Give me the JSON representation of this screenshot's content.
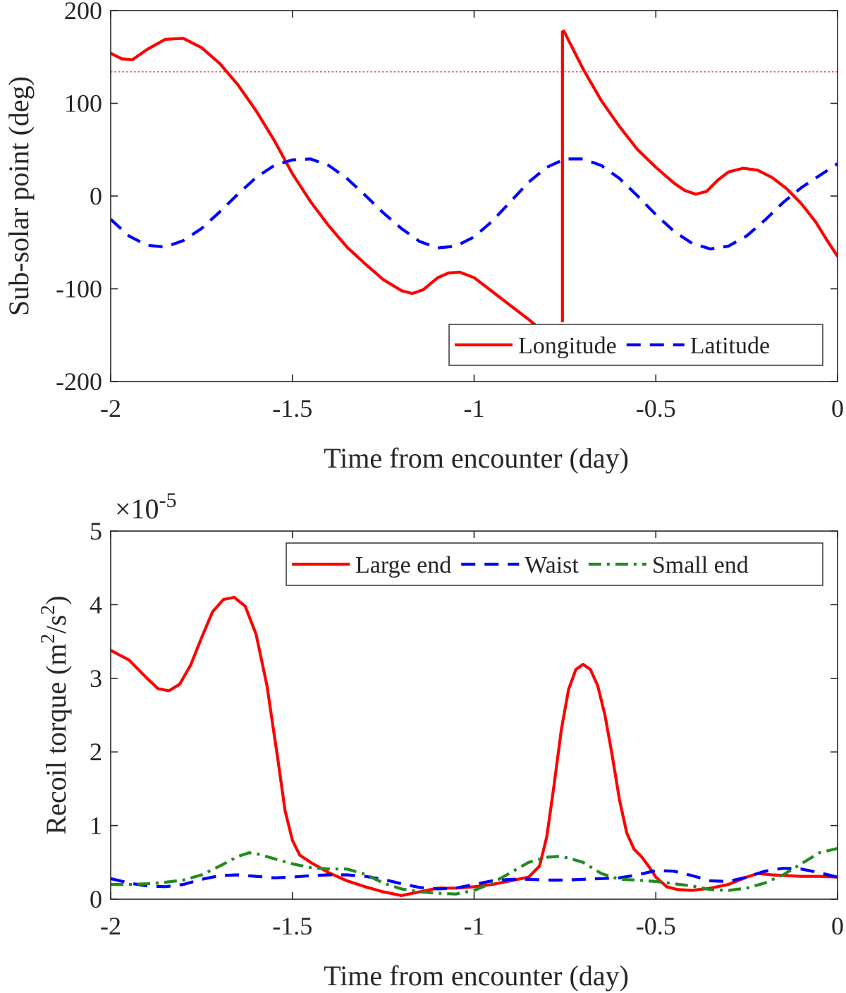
{
  "chart_data": [
    {
      "type": "line",
      "title": "",
      "xlabel": "Time from encounter (day)",
      "ylabel": "Sub-solar point (deg)",
      "xlim": [
        -2,
        0
      ],
      "ylim": [
        -200,
        200
      ],
      "xticks": [
        -2,
        -1.5,
        -1,
        -0.5,
        0
      ],
      "xtick_labels": [
        "-2",
        "-1.5",
        "-1",
        "-0.5",
        "0"
      ],
      "yticks": [
        -200,
        -100,
        0,
        100,
        200
      ],
      "ytick_labels": [
        "-200",
        "-100",
        "0",
        "100",
        "200"
      ],
      "legend_position": "bottom-right",
      "reference_lines": [
        {
          "type": "horizontal",
          "y": 134,
          "style": "dotted",
          "color": "#ff4d4d"
        }
      ],
      "series": [
        {
          "name": "Longitude",
          "style": "solid",
          "color": "#ff0000",
          "segments": [
            {
              "x": [
                -2.0,
                -1.97,
                -1.94,
                -1.9,
                -1.85,
                -1.8,
                -1.75,
                -1.7,
                -1.65,
                -1.6,
                -1.55,
                -1.5,
                -1.45,
                -1.4,
                -1.35,
                -1.3,
                -1.25,
                -1.2,
                -1.17,
                -1.14,
                -1.1,
                -1.07,
                -1.04,
                -1.0,
                -0.95,
                -0.9,
                -0.85,
                -0.82
              ],
              "y": [
                154,
                148,
                147,
                158,
                169,
                170,
                160,
                143,
                120,
                92,
                60,
                24,
                -6,
                -32,
                -55,
                -73,
                -90,
                -102,
                -105,
                -101,
                -88,
                -83,
                -82,
                -88,
                -103,
                -118,
                -133,
                -143
              ]
            },
            {
              "x": [
                -0.757,
                -0.757,
                -0.753,
                -0.7,
                -0.65,
                -0.6,
                -0.55,
                -0.5,
                -0.45,
                -0.42,
                -0.39,
                -0.36,
                -0.33,
                -0.3,
                -0.26,
                -0.22,
                -0.18,
                -0.14,
                -0.1,
                -0.06,
                -0.03,
                0.0
              ],
              "y": [
                -136,
                177,
                178,
                137,
                103,
                75,
                50,
                31,
                14,
                6,
                2,
                5,
                17,
                26,
                30,
                28,
                20,
                8,
                -8,
                -28,
                -47,
                -65
              ]
            }
          ]
        },
        {
          "name": "Latitude",
          "style": "dashed",
          "color": "#0000ff",
          "segments": [
            {
              "x": [
                -2.0,
                -1.95,
                -1.9,
                -1.85,
                -1.8,
                -1.75,
                -1.7,
                -1.65,
                -1.6,
                -1.55,
                -1.5,
                -1.45,
                -1.4,
                -1.35,
                -1.3,
                -1.25,
                -1.2,
                -1.15,
                -1.1,
                -1.05,
                -1.0,
                -0.95,
                -0.9,
                -0.85,
                -0.8,
                -0.75,
                -0.7,
                -0.65,
                -0.6,
                -0.55,
                -0.5,
                -0.45,
                -0.4,
                -0.35,
                -0.3,
                -0.25,
                -0.2,
                -0.15,
                -0.1,
                -0.05,
                0.0
              ],
              "y": [
                -25,
                -43,
                -53,
                -55,
                -48,
                -35,
                -17,
                2,
                20,
                33,
                39,
                40,
                33,
                19,
                1,
                -18,
                -35,
                -49,
                -56,
                -54,
                -44,
                -27,
                -6,
                15,
                31,
                40,
                40,
                33,
                19,
                0,
                -20,
                -38,
                -51,
                -57,
                -54,
                -43,
                -26,
                -7,
                9,
                22,
                35
              ]
            }
          ]
        }
      ]
    },
    {
      "type": "line",
      "title": "",
      "xlabel": "Time from encounter (day)",
      "ylabel_parts": [
        "Recoil torque (m",
        "2",
        "/s",
        "2",
        ")"
      ],
      "ylabel": "Recoil torque (m2/s2)",
      "y_scale_base": "×10",
      "y_scale_exp": "-5",
      "y_multiplier": "x10^-5",
      "xlim": [
        -2,
        0
      ],
      "ylim": [
        0,
        5
      ],
      "xticks": [
        -2,
        -1.5,
        -1,
        -0.5,
        0
      ],
      "xtick_labels": [
        "-2",
        "-1.5",
        "-1",
        "-0.5",
        "0"
      ],
      "yticks": [
        0,
        1,
        2,
        3,
        4,
        5
      ],
      "ytick_labels": [
        "0",
        "1",
        "2",
        "3",
        "4",
        "5"
      ],
      "legend_position": "top-right",
      "series": [
        {
          "name": "Large end",
          "style": "solid",
          "color": "#ff0000",
          "segments": [
            {
              "x": [
                -2.0,
                -1.95,
                -1.9,
                -1.87,
                -1.84,
                -1.81,
                -1.78,
                -1.75,
                -1.72,
                -1.69,
                -1.66,
                -1.63,
                -1.6,
                -1.57,
                -1.54,
                -1.52,
                -1.5,
                -1.48,
                -1.45,
                -1.4,
                -1.35,
                -1.3,
                -1.25,
                -1.2,
                -1.15,
                -1.1,
                -1.05,
                -1.0,
                -0.95,
                -0.9,
                -0.85,
                -0.82,
                -0.8,
                -0.78,
                -0.76,
                -0.74,
                -0.72,
                -0.7,
                -0.68,
                -0.66,
                -0.64,
                -0.62,
                -0.6,
                -0.58,
                -0.56,
                -0.54,
                -0.52,
                -0.5,
                -0.47,
                -0.44,
                -0.4,
                -0.35,
                -0.3,
                -0.25,
                -0.22,
                -0.18,
                -0.1,
                -0.05,
                0.0
              ],
              "y": [
                3.38,
                3.25,
                3.0,
                2.86,
                2.83,
                2.92,
                3.18,
                3.55,
                3.9,
                4.07,
                4.1,
                3.98,
                3.6,
                2.9,
                1.9,
                1.2,
                0.8,
                0.6,
                0.5,
                0.36,
                0.25,
                0.17,
                0.1,
                0.05,
                0.1,
                0.15,
                0.15,
                0.17,
                0.2,
                0.25,
                0.3,
                0.45,
                0.85,
                1.55,
                2.3,
                2.85,
                3.12,
                3.19,
                3.12,
                2.9,
                2.5,
                1.95,
                1.35,
                0.9,
                0.68,
                0.58,
                0.45,
                0.3,
                0.17,
                0.13,
                0.12,
                0.15,
                0.2,
                0.3,
                0.35,
                0.33,
                0.31,
                0.31,
                0.3
              ]
            }
          ]
        },
        {
          "name": "Waist",
          "style": "dashed",
          "color": "#0000ff",
          "segments": [
            {
              "x": [
                -2.0,
                -1.95,
                -1.9,
                -1.85,
                -1.8,
                -1.75,
                -1.7,
                -1.65,
                -1.6,
                -1.55,
                -1.5,
                -1.45,
                -1.4,
                -1.35,
                -1.3,
                -1.25,
                -1.2,
                -1.15,
                -1.1,
                -1.05,
                -1.0,
                -0.95,
                -0.9,
                -0.85,
                -0.8,
                -0.75,
                -0.7,
                -0.65,
                -0.6,
                -0.55,
                -0.5,
                -0.45,
                -0.4,
                -0.35,
                -0.3,
                -0.25,
                -0.2,
                -0.15,
                -0.1,
                -0.05,
                0.0
              ],
              "y": [
                0.28,
                0.22,
                0.18,
                0.17,
                0.2,
                0.27,
                0.32,
                0.33,
                0.31,
                0.29,
                0.3,
                0.32,
                0.33,
                0.33,
                0.31,
                0.27,
                0.21,
                0.16,
                0.14,
                0.15,
                0.2,
                0.25,
                0.27,
                0.27,
                0.26,
                0.26,
                0.27,
                0.28,
                0.29,
                0.33,
                0.39,
                0.38,
                0.32,
                0.25,
                0.24,
                0.3,
                0.38,
                0.42,
                0.41,
                0.36,
                0.3
              ]
            }
          ]
        },
        {
          "name": "Small end",
          "style": "dashdot",
          "color": "#228b22",
          "segments": [
            {
              "x": [
                -2.0,
                -1.95,
                -1.9,
                -1.85,
                -1.8,
                -1.75,
                -1.7,
                -1.65,
                -1.62,
                -1.6,
                -1.55,
                -1.5,
                -1.45,
                -1.4,
                -1.35,
                -1.3,
                -1.25,
                -1.2,
                -1.15,
                -1.1,
                -1.05,
                -1.0,
                -0.95,
                -0.9,
                -0.85,
                -0.8,
                -0.77,
                -0.74,
                -0.7,
                -0.65,
                -0.6,
                -0.55,
                -0.5,
                -0.45,
                -0.4,
                -0.35,
                -0.3,
                -0.25,
                -0.2,
                -0.15,
                -0.1,
                -0.05,
                0.0
              ],
              "y": [
                0.2,
                0.2,
                0.21,
                0.23,
                0.26,
                0.33,
                0.45,
                0.58,
                0.63,
                0.62,
                0.55,
                0.48,
                0.43,
                0.41,
                0.41,
                0.34,
                0.22,
                0.14,
                0.1,
                0.08,
                0.07,
                0.12,
                0.22,
                0.36,
                0.5,
                0.57,
                0.58,
                0.56,
                0.5,
                0.35,
                0.27,
                0.26,
                0.24,
                0.21,
                0.18,
                0.13,
                0.12,
                0.15,
                0.22,
                0.33,
                0.48,
                0.63,
                0.69
              ]
            }
          ]
        }
      ]
    }
  ]
}
